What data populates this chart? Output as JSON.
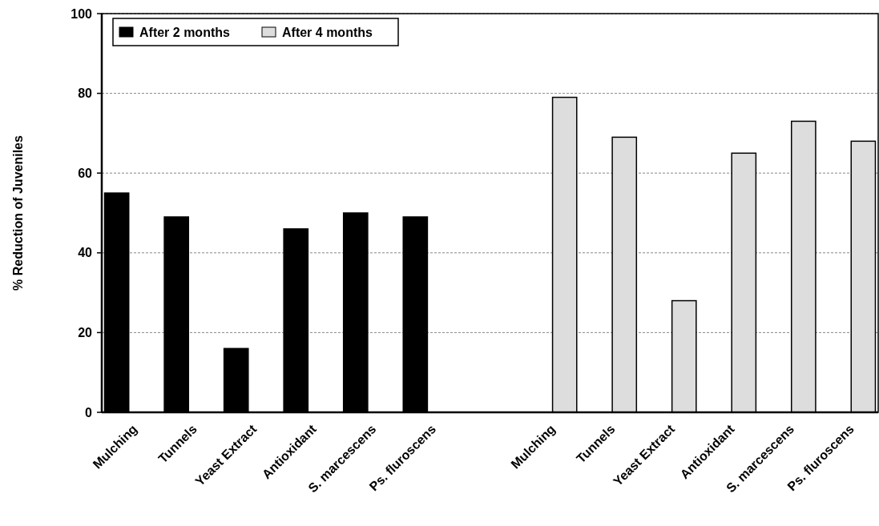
{
  "chart_data": {
    "type": "bar",
    "ylabel": "% Reduction of Juveniles",
    "categories": [
      "Mulching",
      "Tunnels",
      "Yeast Extract",
      "Antioxidant",
      "S. marcescens",
      "Ps. fluroscens",
      null,
      "Mulching",
      "Tunnels",
      "Yeast Extract",
      "Antioxidant",
      "S. marcescens",
      "Ps. fluroscens"
    ],
    "series": [
      {
        "name": "After 2 months",
        "color": "#000000",
        "values": [
          55,
          49,
          16,
          46,
          50,
          49,
          null,
          null,
          null,
          null,
          null,
          null,
          null
        ]
      },
      {
        "name": "After 4 months",
        "color": "#dddddd",
        "values": [
          null,
          null,
          null,
          null,
          null,
          null,
          null,
          79,
          69,
          28,
          65,
          73,
          68
        ]
      }
    ],
    "ylim": [
      0,
      100
    ],
    "yticks": [
      0,
      20,
      40,
      60,
      80,
      100
    ],
    "grid": "y",
    "legend": "top left"
  }
}
